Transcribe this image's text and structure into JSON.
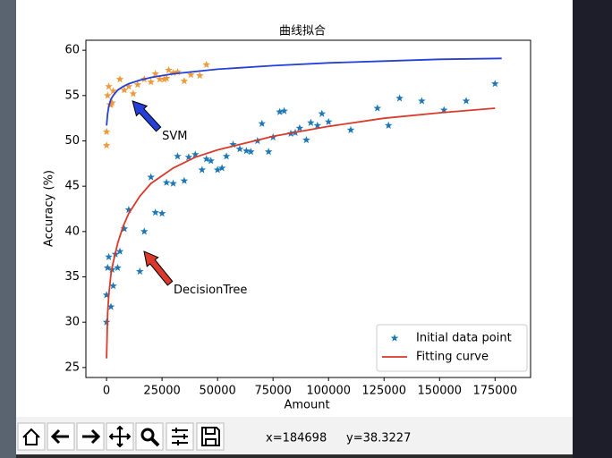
{
  "chart_data": {
    "type": "scatter",
    "title": "曲线拟合",
    "xlabel": "Amount",
    "ylabel": "Accuracy (%)",
    "xlim": [
      -9300,
      191000
    ],
    "ylim": [
      23.9,
      61.1
    ],
    "xticks": [
      0,
      25000,
      50000,
      75000,
      100000,
      125000,
      150000,
      175000
    ],
    "yticks": [
      25,
      30,
      35,
      40,
      45,
      50,
      55,
      60
    ],
    "legend": "lower right",
    "series": [
      {
        "name": "Initial data point",
        "color": "#1f77b4",
        "kind": "scatter",
        "x": [
          0,
          0,
          500,
          1000,
          2000,
          2500,
          3000,
          4000,
          5000,
          6000,
          8000,
          10000,
          15000,
          17000,
          20000,
          22000,
          25000,
          27000,
          30000,
          32000,
          35000,
          37000,
          40000,
          43000,
          45000,
          47000,
          50000,
          52000,
          54000,
          57000,
          60000,
          63000,
          65000,
          68000,
          70000,
          73000,
          75000,
          78000,
          80000,
          83000,
          85000,
          87000,
          90000,
          92000,
          95000,
          97000,
          100000,
          110000,
          122000,
          127000,
          132000,
          142000,
          152000,
          162000,
          175000
        ],
        "values": [
          30,
          33,
          36,
          37.2,
          31.7,
          35.8,
          34,
          37.5,
          36,
          37.8,
          40.3,
          42.4,
          35.6,
          40,
          46,
          42.1,
          42,
          45.4,
          45.3,
          48.3,
          45.6,
          48.2,
          48.5,
          46.8,
          48,
          47.8,
          46.8,
          47,
          48.3,
          49.6,
          49.1,
          48.9,
          48.8,
          50,
          51.9,
          48.8,
          50.4,
          53.2,
          53.3,
          50.8,
          50.9,
          51.4,
          50.1,
          52,
          51.7,
          53,
          52.1,
          51.2,
          53.6,
          51.7,
          54.7,
          54.4,
          53.4,
          54.4,
          56.3
        ]
      },
      {
        "name": "Fitting curve",
        "color": "#d93a2b",
        "kind": "line",
        "x": [
          0,
          500,
          1000,
          2000,
          3000,
          5000,
          7500,
          10000,
          15000,
          20000,
          30000,
          40000,
          50000,
          75000,
          100000,
          125000,
          150000,
          175000
        ],
        "values": [
          26,
          31,
          33,
          35.3,
          36.6,
          38.7,
          40.6,
          42,
          43.9,
          45.3,
          47,
          48.2,
          49,
          50.5,
          51.6,
          52.5,
          53.1,
          53.6
        ]
      },
      {
        "color": "#f0993c",
        "kind": "scatter",
        "x": [
          0,
          0,
          500,
          1000,
          1500,
          2000,
          2500,
          3000,
          6000,
          8000,
          10000,
          12000,
          14000,
          17000,
          20000,
          22000,
          24000,
          26000,
          27000,
          28000,
          30000,
          32000,
          35000,
          38000,
          42000,
          45000
        ],
        "values": [
          49.5,
          51,
          55,
          56,
          54,
          54,
          54.2,
          55.5,
          56.8,
          55.6,
          56,
          55.2,
          56.2,
          56.8,
          56.5,
          57.4,
          56.8,
          56.8,
          56.9,
          57.8,
          57.5,
          57.6,
          56.6,
          57.3,
          57.2,
          58.4
        ]
      },
      {
        "color": "#2440d8",
        "kind": "line",
        "x": [
          0,
          500,
          1000,
          2000,
          3000,
          5000,
          7500,
          10000,
          15000,
          20000,
          30000,
          50000,
          75000,
          100000,
          125000,
          150000,
          178000
        ],
        "values": [
          51.7,
          53,
          53.8,
          54.6,
          55,
          55.6,
          56,
          56.3,
          56.7,
          57,
          57.4,
          57.9,
          58.3,
          58.6,
          58.8,
          59,
          59.1
        ]
      }
    ],
    "annotations": [
      {
        "text": "SVM",
        "xy": [
          11700,
          54.4
        ],
        "xytext": [
          25000,
          50.5
        ],
        "color": "#2440d8"
      },
      {
        "text": "DecisionTree",
        "xy": [
          16900,
          37.8
        ],
        "xytext": [
          30200,
          33.5
        ],
        "color": "#d93a2b"
      }
    ]
  },
  "status": {
    "x": "x=184698",
    "y": "y=38.3227"
  }
}
